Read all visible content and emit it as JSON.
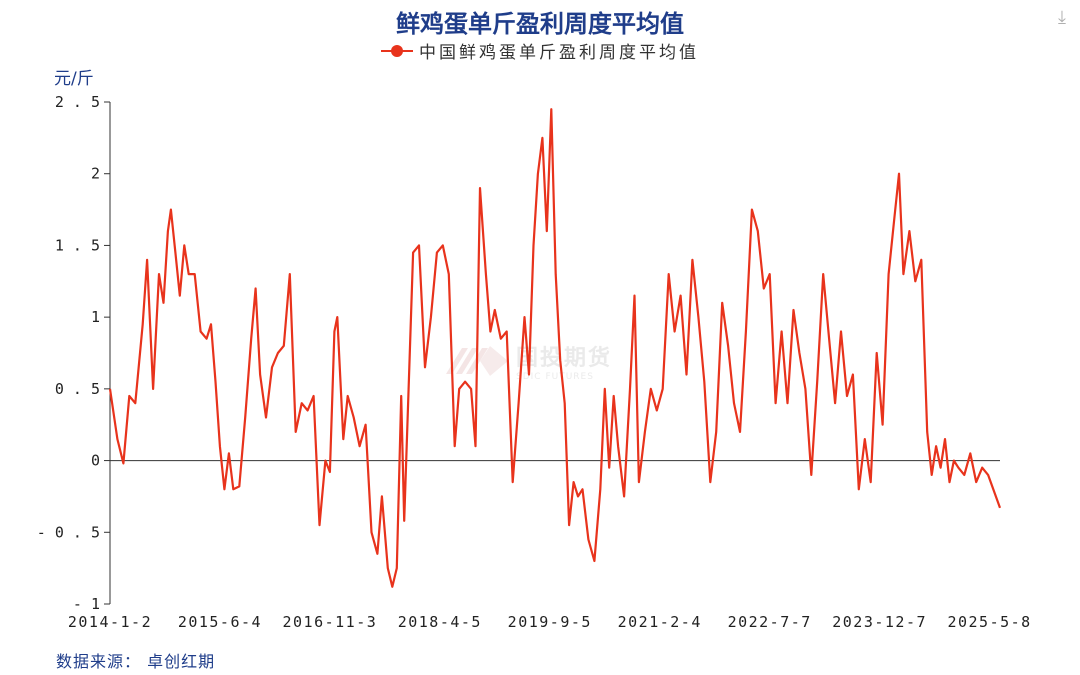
{
  "title": "鲜鸡蛋单斤盈利周度平均值",
  "unit_label": "元/斤",
  "source": "数据来源： 卓创红期",
  "watermark": {
    "cn": "国投期货",
    "en": "SDIC FUTURES"
  },
  "icons": {
    "download": "download-icon"
  },
  "colors": {
    "series": "#e8331c",
    "title": "#1f3d8a",
    "axis": "#333333"
  },
  "chart_data": {
    "type": "line",
    "title": "鲜鸡蛋单斤盈利周度平均值",
    "ylabel": "元/斤",
    "ylim": [
      -1,
      2.5
    ],
    "yticks": [
      {
        "value": 2.5,
        "label": "2.5"
      },
      {
        "value": 2,
        "label": "2"
      },
      {
        "value": 1.5,
        "label": "1.5"
      },
      {
        "value": 1,
        "label": "1"
      },
      {
        "value": 0.5,
        "label": "0.5"
      },
      {
        "value": 0,
        "label": "0"
      },
      {
        "value": -0.5,
        "label": "-0.5"
      },
      {
        "value": -1,
        "label": "-1"
      }
    ],
    "xlim": [
      "2014-01-02",
      "2025-06-26"
    ],
    "xticks": [
      {
        "date": "2014-01-02",
        "label": "2014-1-2"
      },
      {
        "date": "2015-06-04",
        "label": "2015-6-4"
      },
      {
        "date": "2016-11-03",
        "label": "2016-11-3"
      },
      {
        "date": "2018-04-05",
        "label": "2018-4-5"
      },
      {
        "date": "2019-09-05",
        "label": "2019-9-5"
      },
      {
        "date": "2021-02-04",
        "label": "2021-2-4"
      },
      {
        "date": "2022-07-07",
        "label": "2022-7-7"
      },
      {
        "date": "2023-12-07",
        "label": "2023-12-7"
      },
      {
        "date": "2025-05-08",
        "label": "2025-5-8"
      }
    ],
    "grid": false,
    "legend": "top-center",
    "series": [
      {
        "name": "中国鲜鸡蛋单斤盈利周度平均值",
        "color": "#e8331c",
        "points": [
          [
            "2014-01-02",
            0.5
          ],
          [
            "2014-02-06",
            0.15
          ],
          [
            "2014-03-06",
            -0.02
          ],
          [
            "2014-04-03",
            0.45
          ],
          [
            "2014-05-01",
            0.4
          ],
          [
            "2014-06-05",
            0.95
          ],
          [
            "2014-06-26",
            1.4
          ],
          [
            "2014-07-24",
            0.5
          ],
          [
            "2014-08-21",
            1.3
          ],
          [
            "2014-09-11",
            1.1
          ],
          [
            "2014-10-02",
            1.6
          ],
          [
            "2014-10-16",
            1.75
          ],
          [
            "2014-11-06",
            1.45
          ],
          [
            "2014-11-27",
            1.15
          ],
          [
            "2014-12-18",
            1.5
          ],
          [
            "2015-01-08",
            1.3
          ],
          [
            "2015-02-05",
            1.3
          ],
          [
            "2015-03-05",
            0.9
          ],
          [
            "2015-04-02",
            0.85
          ],
          [
            "2015-04-23",
            0.95
          ],
          [
            "2015-05-14",
            0.55
          ],
          [
            "2015-06-04",
            0.1
          ],
          [
            "2015-06-25",
            -0.2
          ],
          [
            "2015-07-16",
            0.05
          ],
          [
            "2015-08-06",
            -0.2
          ],
          [
            "2015-09-03",
            -0.18
          ],
          [
            "2015-10-01",
            0.3
          ],
          [
            "2015-10-29",
            0.85
          ],
          [
            "2015-11-19",
            1.2
          ],
          [
            "2015-12-10",
            0.6
          ],
          [
            "2016-01-07",
            0.3
          ],
          [
            "2016-02-04",
            0.65
          ],
          [
            "2016-03-03",
            0.75
          ],
          [
            "2016-03-31",
            0.8
          ],
          [
            "2016-04-28",
            1.3
          ],
          [
            "2016-05-26",
            0.2
          ],
          [
            "2016-06-23",
            0.4
          ],
          [
            "2016-07-21",
            0.35
          ],
          [
            "2016-08-18",
            0.45
          ],
          [
            "2016-09-15",
            -0.45
          ],
          [
            "2016-10-13",
            0.0
          ],
          [
            "2016-11-03",
            -0.08
          ],
          [
            "2016-11-24",
            0.9
          ],
          [
            "2016-12-08",
            1.0
          ],
          [
            "2017-01-05",
            0.15
          ],
          [
            "2017-01-26",
            0.45
          ],
          [
            "2017-02-23",
            0.3
          ],
          [
            "2017-03-23",
            0.1
          ],
          [
            "2017-04-20",
            0.25
          ],
          [
            "2017-05-18",
            -0.5
          ],
          [
            "2017-06-15",
            -0.65
          ],
          [
            "2017-07-06",
            -0.25
          ],
          [
            "2017-08-03",
            -0.75
          ],
          [
            "2017-08-24",
            -0.88
          ],
          [
            "2017-09-14",
            -0.75
          ],
          [
            "2017-10-05",
            0.45
          ],
          [
            "2017-10-19",
            -0.42
          ],
          [
            "2017-11-09",
            0.5
          ],
          [
            "2017-11-30",
            1.45
          ],
          [
            "2017-12-28",
            1.5
          ],
          [
            "2018-01-25",
            0.65
          ],
          [
            "2018-02-22",
            1.0
          ],
          [
            "2018-03-22",
            1.45
          ],
          [
            "2018-04-19",
            1.5
          ],
          [
            "2018-05-17",
            1.3
          ],
          [
            "2018-06-14",
            0.1
          ],
          [
            "2018-07-05",
            0.5
          ],
          [
            "2018-08-02",
            0.55
          ],
          [
            "2018-08-30",
            0.5
          ],
          [
            "2018-09-20",
            0.1
          ],
          [
            "2018-10-11",
            1.9
          ],
          [
            "2018-11-08",
            1.3
          ],
          [
            "2018-11-29",
            0.9
          ],
          [
            "2018-12-20",
            1.05
          ],
          [
            "2019-01-17",
            0.85
          ],
          [
            "2019-02-14",
            0.9
          ],
          [
            "2019-03-14",
            -0.15
          ],
          [
            "2019-04-11",
            0.4
          ],
          [
            "2019-05-09",
            1.0
          ],
          [
            "2019-05-30",
            0.6
          ],
          [
            "2019-06-20",
            1.5
          ],
          [
            "2019-07-11",
            2.0
          ],
          [
            "2019-08-01",
            2.25
          ],
          [
            "2019-08-22",
            1.6
          ],
          [
            "2019-09-12",
            2.45
          ],
          [
            "2019-10-03",
            1.3
          ],
          [
            "2019-10-24",
            0.7
          ],
          [
            "2019-11-14",
            0.4
          ],
          [
            "2019-12-05",
            -0.45
          ],
          [
            "2019-12-26",
            -0.15
          ],
          [
            "2020-01-16",
            -0.25
          ],
          [
            "2020-02-06",
            -0.2
          ],
          [
            "2020-03-05",
            -0.55
          ],
          [
            "2020-04-02",
            -0.7
          ],
          [
            "2020-04-30",
            -0.2
          ],
          [
            "2020-05-21",
            0.5
          ],
          [
            "2020-06-11",
            -0.05
          ],
          [
            "2020-07-02",
            0.45
          ],
          [
            "2020-07-23",
            0.1
          ],
          [
            "2020-08-20",
            -0.25
          ],
          [
            "2020-09-17",
            0.5
          ],
          [
            "2020-10-08",
            1.15
          ],
          [
            "2020-10-29",
            -0.15
          ],
          [
            "2020-11-26",
            0.2
          ],
          [
            "2020-12-24",
            0.5
          ],
          [
            "2021-01-21",
            0.35
          ],
          [
            "2021-02-18",
            0.5
          ],
          [
            "2021-03-18",
            1.3
          ],
          [
            "2021-04-15",
            0.9
          ],
          [
            "2021-05-13",
            1.15
          ],
          [
            "2021-06-10",
            0.6
          ],
          [
            "2021-07-08",
            1.4
          ],
          [
            "2021-08-05",
            1.0
          ],
          [
            "2021-09-02",
            0.55
          ],
          [
            "2021-09-30",
            -0.15
          ],
          [
            "2021-10-28",
            0.2
          ],
          [
            "2021-11-25",
            1.1
          ],
          [
            "2021-12-23",
            0.8
          ],
          [
            "2022-01-20",
            0.4
          ],
          [
            "2022-02-17",
            0.2
          ],
          [
            "2022-03-17",
            0.9
          ],
          [
            "2022-04-14",
            1.75
          ],
          [
            "2022-05-12",
            1.6
          ],
          [
            "2022-06-09",
            1.2
          ],
          [
            "2022-07-07",
            1.3
          ],
          [
            "2022-08-04",
            0.4
          ],
          [
            "2022-09-01",
            0.9
          ],
          [
            "2022-09-29",
            0.4
          ],
          [
            "2022-10-27",
            1.05
          ],
          [
            "2022-11-24",
            0.75
          ],
          [
            "2022-12-22",
            0.5
          ],
          [
            "2023-01-19",
            -0.1
          ],
          [
            "2023-02-16",
            0.55
          ],
          [
            "2023-03-16",
            1.3
          ],
          [
            "2023-04-13",
            0.85
          ],
          [
            "2023-05-11",
            0.4
          ],
          [
            "2023-06-08",
            0.9
          ],
          [
            "2023-07-06",
            0.45
          ],
          [
            "2023-08-03",
            0.6
          ],
          [
            "2023-08-31",
            -0.2
          ],
          [
            "2023-09-28",
            0.15
          ],
          [
            "2023-10-26",
            -0.15
          ],
          [
            "2023-11-23",
            0.75
          ],
          [
            "2023-12-21",
            0.25
          ],
          [
            "2024-01-18",
            1.3
          ],
          [
            "2024-02-15",
            1.7
          ],
          [
            "2024-03-07",
            2.0
          ],
          [
            "2024-03-28",
            1.3
          ],
          [
            "2024-04-25",
            1.6
          ],
          [
            "2024-05-23",
            1.25
          ],
          [
            "2024-06-20",
            1.4
          ],
          [
            "2024-07-18",
            0.2
          ],
          [
            "2024-08-08",
            -0.1
          ],
          [
            "2024-08-29",
            0.1
          ],
          [
            "2024-09-19",
            -0.05
          ],
          [
            "2024-10-10",
            0.15
          ],
          [
            "2024-10-31",
            -0.15
          ],
          [
            "2024-11-21",
            0.0
          ],
          [
            "2024-12-12",
            -0.05
          ],
          [
            "2025-01-09",
            -0.1
          ],
          [
            "2025-02-06",
            0.05
          ],
          [
            "2025-03-06",
            -0.15
          ],
          [
            "2025-04-03",
            -0.05
          ],
          [
            "2025-05-01",
            -0.1
          ],
          [
            "2025-06-26",
            -0.33
          ]
        ]
      }
    ]
  }
}
